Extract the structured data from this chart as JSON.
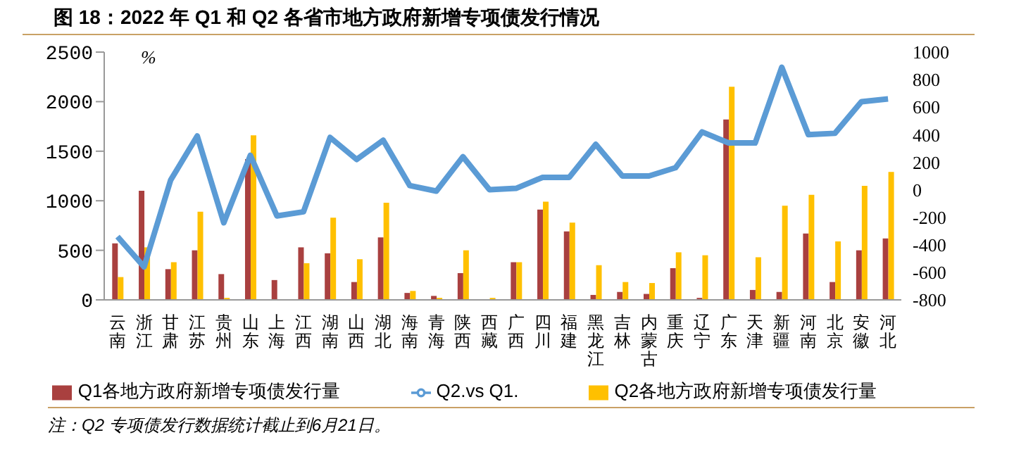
{
  "chart_data": {
    "type": "bar",
    "title": "图 18：2022 年 Q1 和 Q2 各省市地方政府新增专项债发行情况",
    "categories": [
      "云南",
      "浙江",
      "甘肃",
      "江苏",
      "贵州",
      "山东",
      "上海",
      "江西",
      "湖南",
      "山西",
      "湖北",
      "海南",
      "青海",
      "陕西",
      "西藏",
      "广西",
      "四川",
      "福建",
      "黑龙江",
      "吉林",
      "内蒙古",
      "重庆",
      "辽宁",
      "广东",
      "天津",
      "新疆",
      "河南",
      "北京",
      "安徽",
      "河北"
    ],
    "series": [
      {
        "name": "Q1各地方政府新增专项债发行量",
        "color": "#a9403f",
        "values": [
          570,
          1100,
          310,
          500,
          260,
          1420,
          200,
          530,
          470,
          180,
          630,
          70,
          40,
          270,
          0,
          380,
          910,
          690,
          50,
          80,
          60,
          320,
          20,
          1820,
          100,
          80,
          670,
          180,
          500,
          620
        ]
      },
      {
        "name": "Q2各地方政府新增专项债发行量",
        "color": "#ffc000",
        "values": [
          230,
          530,
          380,
          890,
          20,
          1660,
          0,
          370,
          830,
          410,
          980,
          90,
          20,
          500,
          20,
          380,
          990,
          780,
          350,
          180,
          170,
          480,
          450,
          2150,
          430,
          950,
          1060,
          590,
          1150,
          1290
        ]
      },
      {
        "name": "Q2.vs Q1.",
        "type": "line",
        "axis": "y2",
        "color": "#5b9bd5",
        "values": [
          -340,
          -560,
          70,
          390,
          -240,
          250,
          -190,
          -160,
          380,
          220,
          360,
          30,
          -10,
          240,
          0,
          10,
          90,
          90,
          330,
          100,
          100,
          160,
          420,
          340,
          340,
          890,
          400,
          410,
          640,
          660
        ]
      }
    ],
    "ylim": [
      0,
      2500
    ],
    "yticks": [
      0,
      500,
      1000,
      1500,
      2000,
      2500
    ],
    "y2lim": [
      -800,
      1000
    ],
    "y2ticks": [
      -800,
      -600,
      -400,
      -200,
      0,
      200,
      400,
      600,
      800,
      1000
    ],
    "ylabel": "%",
    "legend": "bottom",
    "annotations": [
      "注：Q2 专项债发行数据统计截止到6月21日。"
    ]
  }
}
